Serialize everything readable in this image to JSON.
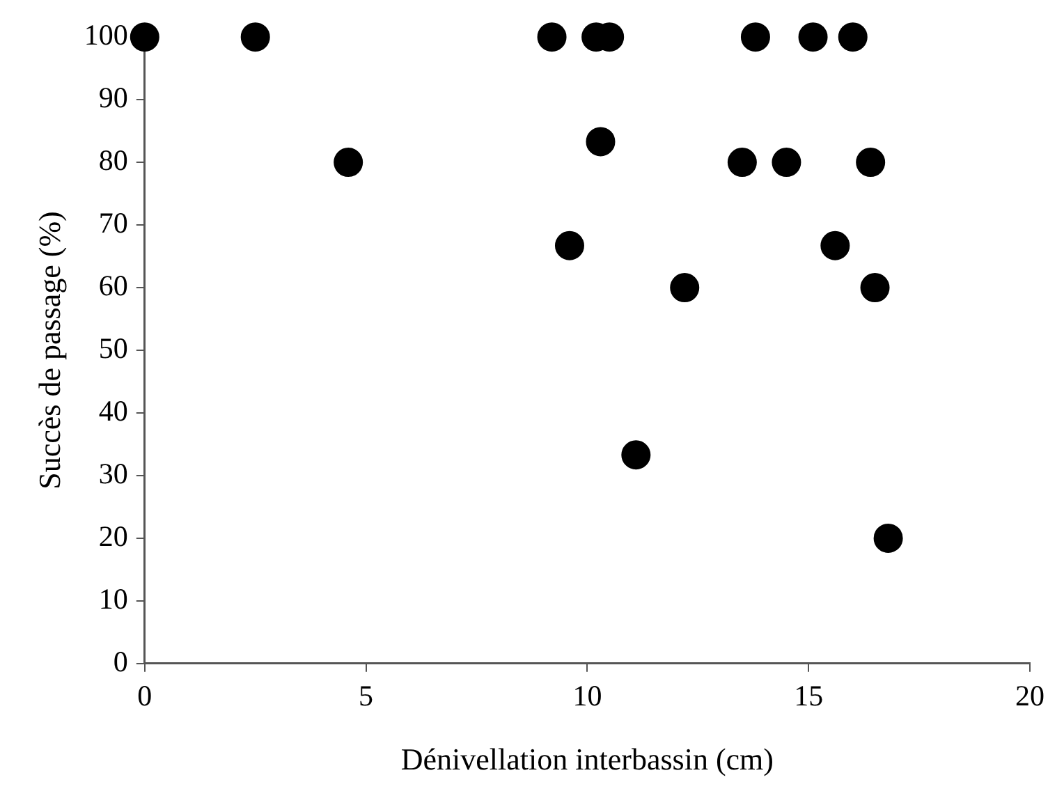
{
  "chart_data": {
    "type": "scatter",
    "xlabel": "Dénivellation interbassin (cm)",
    "ylabel": "Succès de passage (%)",
    "x": [
      0,
      2.5,
      4.6,
      9.2,
      9.6,
      10.2,
      10.3,
      10.5,
      11.1,
      12.2,
      13.5,
      13.8,
      14.5,
      15.1,
      15.6,
      16.0,
      16.4,
      16.5,
      16.8
    ],
    "values": [
      100,
      100,
      80,
      100,
      66.7,
      100,
      83.3,
      100,
      33.3,
      60,
      80,
      100,
      80,
      100,
      66.7,
      100,
      80,
      60,
      20
    ],
    "color": "#000000",
    "marker": "circle",
    "grid": false,
    "xlim": [
      0,
      20
    ],
    "xticks": [
      0,
      5,
      10,
      15,
      20
    ],
    "ylim": [
      0,
      100
    ],
    "yticks": [
      0,
      10,
      20,
      30,
      40,
      50,
      60,
      70,
      80,
      90,
      100
    ]
  }
}
